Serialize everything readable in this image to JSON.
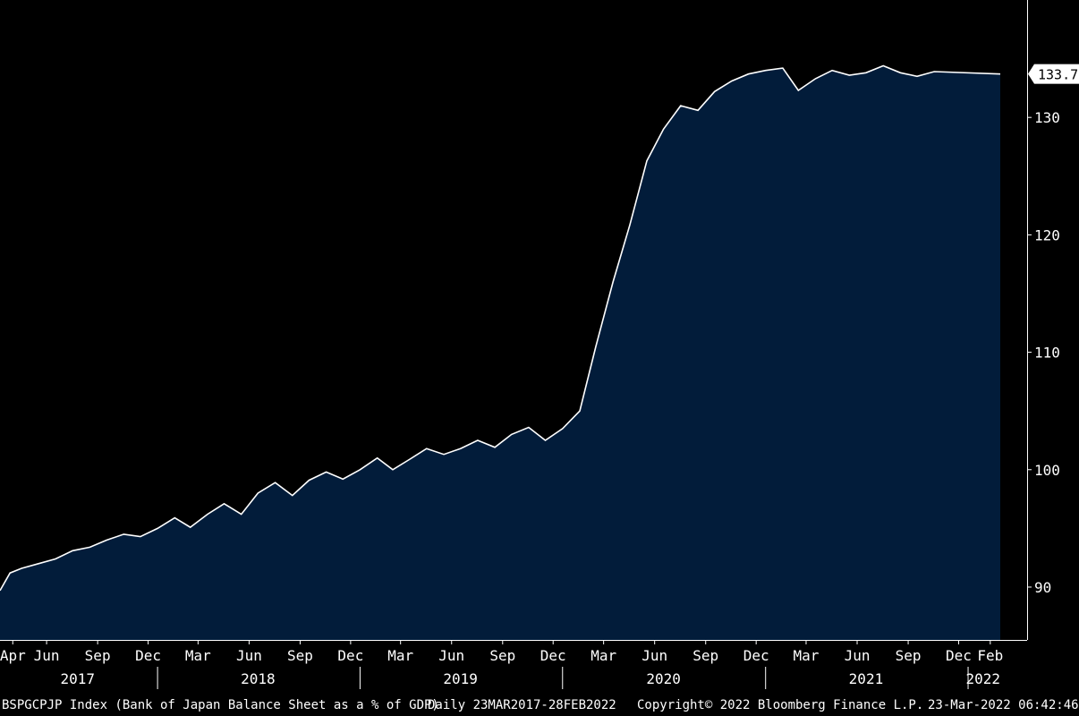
{
  "chart_data": {
    "type": "area",
    "title": "",
    "xlabel": "",
    "ylabel": "",
    "ylim": [
      85.5,
      140
    ],
    "y_ticks": [
      90,
      100,
      110,
      120,
      130
    ],
    "last_value_label": "133.7",
    "month_labels": [
      "Apr",
      "Jun",
      "Sep",
      "Dec",
      "Mar",
      "Jun",
      "Sep",
      "Dec",
      "Mar",
      "Jun",
      "Sep",
      "Dec",
      "Mar",
      "Jun",
      "Sep",
      "Dec",
      "Mar",
      "Jun",
      "Sep",
      "Dec",
      "Feb"
    ],
    "year_labels": [
      "2017",
      "2018",
      "2019",
      "2020",
      "2021",
      "2022"
    ],
    "series": [
      {
        "values": [
          [
            "2017-03-23",
            89.7
          ],
          [
            "2017-04-10",
            91.2
          ],
          [
            "2017-05-01",
            91.6
          ],
          [
            "2017-06-01",
            92.0
          ],
          [
            "2017-07-01",
            92.4
          ],
          [
            "2017-08-01",
            93.1
          ],
          [
            "2017-09-01",
            93.4
          ],
          [
            "2017-10-01",
            94.0
          ],
          [
            "2017-11-01",
            94.5
          ],
          [
            "2017-12-01",
            94.3
          ],
          [
            "2018-01-01",
            95.0
          ],
          [
            "2018-02-01",
            95.9
          ],
          [
            "2018-03-01",
            95.1
          ],
          [
            "2018-04-01",
            96.2
          ],
          [
            "2018-05-01",
            97.1
          ],
          [
            "2018-06-01",
            96.2
          ],
          [
            "2018-07-01",
            98.0
          ],
          [
            "2018-08-01",
            98.9
          ],
          [
            "2018-09-01",
            97.8
          ],
          [
            "2018-10-01",
            99.1
          ],
          [
            "2018-11-01",
            99.8
          ],
          [
            "2018-12-01",
            99.2
          ],
          [
            "2019-01-01",
            100.0
          ],
          [
            "2019-02-01",
            101.0
          ],
          [
            "2019-03-01",
            100.0
          ],
          [
            "2019-04-01",
            100.9
          ],
          [
            "2019-05-01",
            101.8
          ],
          [
            "2019-06-01",
            101.3
          ],
          [
            "2019-07-01",
            101.8
          ],
          [
            "2019-08-01",
            102.5
          ],
          [
            "2019-09-01",
            101.9
          ],
          [
            "2019-10-01",
            103.0
          ],
          [
            "2019-11-01",
            103.6
          ],
          [
            "2019-12-01",
            102.5
          ],
          [
            "2020-01-01",
            103.5
          ],
          [
            "2020-02-01",
            105.0
          ],
          [
            "2020-03-01",
            110.5
          ],
          [
            "2020-04-01",
            116.0
          ],
          [
            "2020-05-01",
            120.8
          ],
          [
            "2020-06-01",
            126.3
          ],
          [
            "2020-07-01",
            129.0
          ],
          [
            "2020-08-01",
            131.0
          ],
          [
            "2020-09-01",
            130.6
          ],
          [
            "2020-10-01",
            132.2
          ],
          [
            "2020-11-01",
            133.1
          ],
          [
            "2020-12-01",
            133.7
          ],
          [
            "2021-01-01",
            134.0
          ],
          [
            "2021-02-01",
            134.2
          ],
          [
            "2021-03-01",
            132.3
          ],
          [
            "2021-04-01",
            133.3
          ],
          [
            "2021-05-01",
            134.0
          ],
          [
            "2021-06-01",
            133.6
          ],
          [
            "2021-07-01",
            133.8
          ],
          [
            "2021-08-01",
            134.4
          ],
          [
            "2021-09-01",
            133.8
          ],
          [
            "2021-10-01",
            133.5
          ],
          [
            "2021-11-01",
            133.9
          ],
          [
            "2022-02-28",
            133.7
          ]
        ]
      }
    ]
  },
  "colors": {
    "background": "#000000",
    "area_fill": "#021c3a",
    "line": "#ffffff",
    "text": "#ffffff",
    "axis": "#ffffff"
  },
  "footer": {
    "ticker": "BSPGCPJP Index (Bank of Japan Balance Sheet as a % of GDP)",
    "range": "Daily 23MAR2017-28FEB2022",
    "copyright": "Copyright© 2022 Bloomberg Finance L.P.",
    "timestamp": "23-Mar-2022 06:42:46"
  }
}
